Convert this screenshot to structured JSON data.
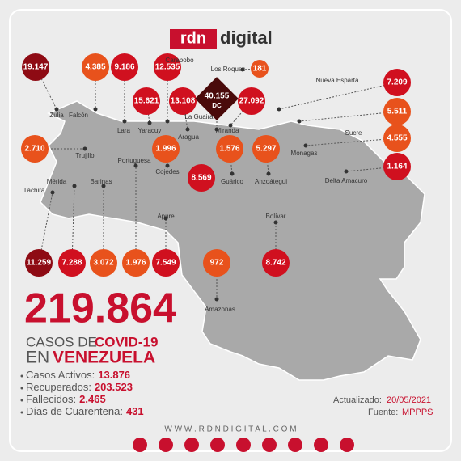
{
  "logo": {
    "part1": "rdn",
    "part2": "digital"
  },
  "counts": [
    "19.147",
    "4.385",
    "9.186",
    "12.535",
    "181",
    "15.621",
    "13.108",
    "40.155",
    "27.092",
    "7.209",
    "5.511",
    "4.555",
    "1.164",
    "2.710",
    "1.996",
    "1.576",
    "5.297",
    "8.569",
    "11.259",
    "7.288",
    "3.072",
    "1.976",
    "7.549",
    "972",
    "8.742"
  ],
  "dc_label": "DC",
  "places": [
    "Zulia",
    "Falcón",
    "Lara",
    "Carabobo",
    "Los Roques",
    "Yaracuy",
    "Aragua",
    "La Guaira",
    "Miranda",
    "Nueva Esparta",
    "Sucre",
    "Monagas",
    "Delta Amacuro",
    "Trujillo",
    "Cojedes",
    "Guárico",
    "Anzoátegui",
    "Portuguesa",
    "Táchira",
    "Mérida",
    "Barinas",
    "Apure",
    "Amazonas",
    "Bolívar"
  ],
  "headline": {
    "total": "219.864",
    "line1a": "CASOS DE",
    "line1b": "COVID-19",
    "line2a": "EN",
    "line2b": "VENEZUELA"
  },
  "stats": [
    {
      "label": "Casos Activos:",
      "value": "13.876"
    },
    {
      "label": "Recuperados:",
      "value": "203.523"
    },
    {
      "label": "Fallecidos:",
      "value": "2.465"
    },
    {
      "label": "Días de Cuarentena:",
      "value": "431"
    }
  ],
  "updated": {
    "label": "Actualizado:",
    "value": "20/05/2021"
  },
  "source": {
    "label": "Fuente:",
    "value": "MPPPS"
  },
  "website": "W W W . R D N D I G I T A L . C O M"
}
